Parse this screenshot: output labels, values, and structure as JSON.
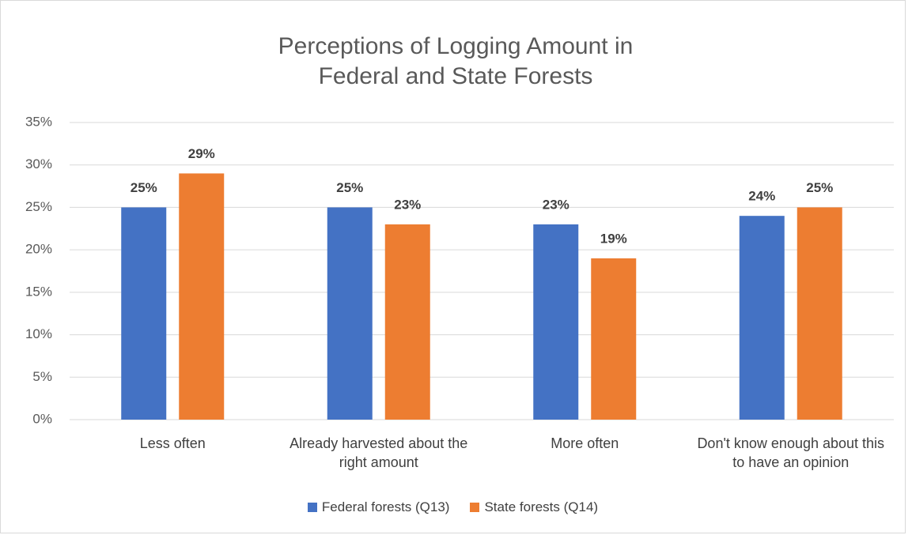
{
  "chart_data": {
    "type": "bar",
    "title": "Perceptions of Logging Amount in Federal and State Forests",
    "categories": [
      "Less often",
      "Already harvested about the right amount",
      "More often",
      "Don't know enough about this to have an opinion"
    ],
    "series": [
      {
        "name": "Federal forests (Q13)",
        "color": "#4472c4",
        "values": [
          25,
          25,
          23,
          24
        ],
        "value_labels": [
          "25%",
          "25%",
          "23%",
          "24%"
        ]
      },
      {
        "name": "State forests (Q14)",
        "color": "#ed7d31",
        "values": [
          29,
          23,
          19,
          25
        ],
        "value_labels": [
          "29%",
          "23%",
          "19%",
          "25%"
        ]
      }
    ],
    "ylim": [
      0,
      35
    ],
    "yticks": [
      {
        "value": 0,
        "label": "0%"
      },
      {
        "value": 5,
        "label": "5%"
      },
      {
        "value": 10,
        "label": "10%"
      },
      {
        "value": 15,
        "label": "15%"
      },
      {
        "value": 20,
        "label": "20%"
      },
      {
        "value": 25,
        "label": "25%"
      },
      {
        "value": 30,
        "label": "30%"
      },
      {
        "value": 35,
        "label": "35%"
      }
    ],
    "grid": true,
    "legend": "bottom"
  }
}
